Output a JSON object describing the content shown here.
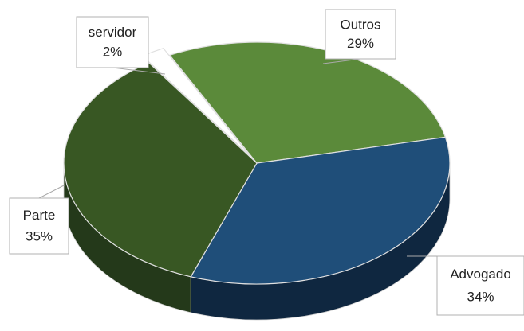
{
  "chart_data": {
    "type": "pie3d",
    "categories": [
      "servidor",
      "Outros",
      "Advogado",
      "Parte"
    ],
    "values": [
      2,
      29,
      34,
      35
    ],
    "value_labels": [
      "2%",
      "29%",
      "34%",
      "35%"
    ],
    "colors": [
      "#ffffff",
      "#5b8a3a",
      "#1f4e79",
      "#385723"
    ],
    "side_colors": [
      "#e8e8e8",
      "#3d5e26",
      "#0f2740",
      "#24391a"
    ]
  }
}
